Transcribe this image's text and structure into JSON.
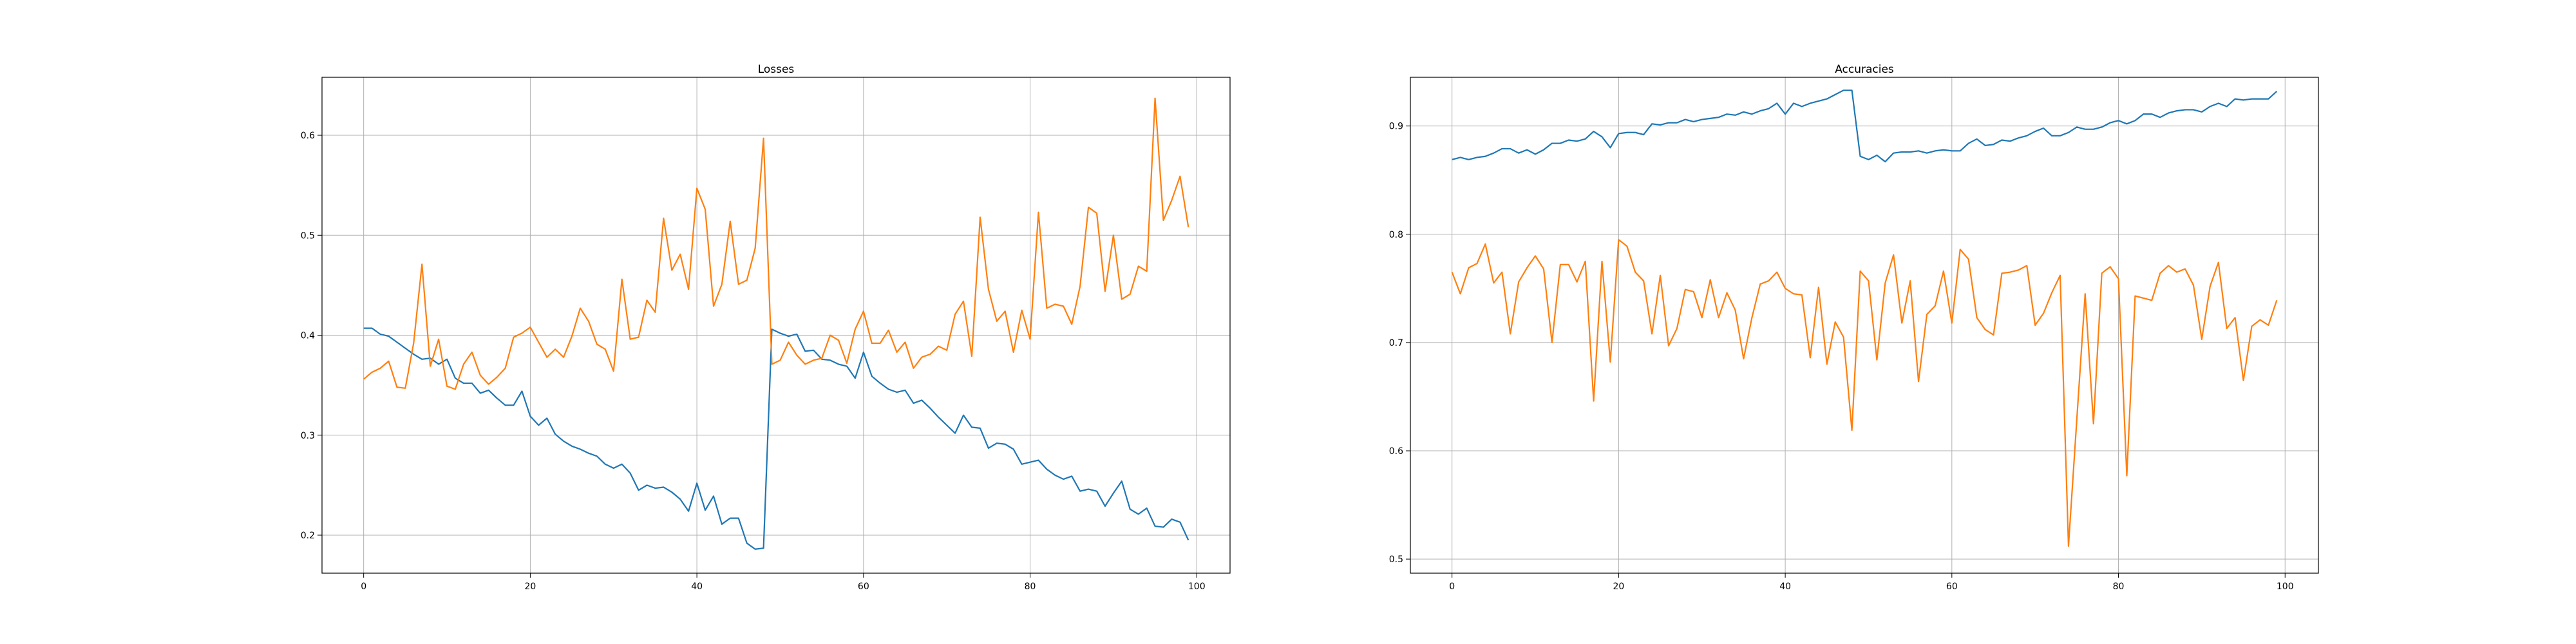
{
  "chart_data": [
    {
      "type": "line",
      "title": "Losses",
      "xlim": [
        -5,
        104
      ],
      "ylim": [
        0.162,
        0.658
      ],
      "xticks": [
        0,
        20,
        40,
        60,
        80,
        100
      ],
      "yticks": [
        0.2,
        0.3,
        0.4,
        0.5,
        0.6
      ],
      "xtick_labels": [
        "0",
        "20",
        "40",
        "60",
        "80",
        "100"
      ],
      "ytick_labels": [
        "0.2",
        "0.3",
        "0.4",
        "0.5",
        "0.6"
      ],
      "grid": true,
      "legend": "none",
      "series": [
        {
          "color": "#1f77b4",
          "x": [
            0,
            1,
            2,
            3,
            4,
            5,
            6,
            7,
            8,
            9,
            10,
            11,
            12,
            13,
            14,
            15,
            16,
            17,
            18,
            19,
            20,
            21,
            22,
            23,
            24,
            25,
            26,
            27,
            28,
            29,
            30,
            31,
            32,
            33,
            34,
            35,
            36,
            37,
            38,
            39,
            40,
            41,
            42,
            43,
            44,
            45,
            46,
            47,
            48,
            49,
            50,
            51,
            52,
            53,
            54,
            55,
            56,
            57,
            58,
            59,
            60,
            61,
            62,
            63,
            64,
            65,
            66,
            67,
            68,
            69,
            70,
            71,
            72,
            73,
            74,
            75,
            76,
            77,
            78,
            79,
            80,
            81,
            82,
            83,
            84,
            85,
            86,
            87,
            88,
            89,
            90,
            91,
            92,
            93,
            94,
            95,
            96,
            97,
            98,
            99
          ],
          "values": [
            0.407,
            0.407,
            0.401,
            0.399,
            0.393,
            0.387,
            0.381,
            0.376,
            0.377,
            0.371,
            0.376,
            0.357,
            0.352,
            0.352,
            0.342,
            0.345,
            0.337,
            0.33,
            0.33,
            0.344,
            0.319,
            0.31,
            0.317,
            0.301,
            0.294,
            0.289,
            0.286,
            0.282,
            0.279,
            0.271,
            0.267,
            0.271,
            0.262,
            0.245,
            0.25,
            0.247,
            0.248,
            0.243,
            0.236,
            0.224,
            0.252,
            0.225,
            0.239,
            0.211,
            0.217,
            0.217,
            0.192,
            0.186,
            0.187,
            0.406,
            0.402,
            0.399,
            0.401,
            0.384,
            0.385,
            0.376,
            0.375,
            0.371,
            0.369,
            0.357,
            0.383,
            0.359,
            0.352,
            0.346,
            0.343,
            0.345,
            0.332,
            0.335,
            0.327,
            0.318,
            0.31,
            0.302,
            0.32,
            0.308,
            0.307,
            0.287,
            0.292,
            0.291,
            0.286,
            0.271,
            0.273,
            0.275,
            0.266,
            0.26,
            0.256,
            0.259,
            0.244,
            0.246,
            0.244,
            0.229,
            0.242,
            0.254,
            0.226,
            0.221,
            0.227,
            0.209,
            0.208,
            0.216,
            0.213,
            0.195
          ]
        },
        {
          "color": "#ff7f0e",
          "x": [
            0,
            1,
            2,
            3,
            4,
            5,
            6,
            7,
            8,
            9,
            10,
            11,
            12,
            13,
            14,
            15,
            16,
            17,
            18,
            19,
            20,
            21,
            22,
            23,
            24,
            25,
            26,
            27,
            28,
            29,
            30,
            31,
            32,
            33,
            34,
            35,
            36,
            37,
            38,
            39,
            40,
            41,
            42,
            43,
            44,
            45,
            46,
            47,
            48,
            49,
            50,
            51,
            52,
            53,
            54,
            55,
            56,
            57,
            58,
            59,
            60,
            61,
            62,
            63,
            64,
            65,
            66,
            67,
            68,
            69,
            70,
            71,
            72,
            73,
            74,
            75,
            76,
            77,
            78,
            79,
            80,
            81,
            82,
            83,
            84,
            85,
            86,
            87,
            88,
            89,
            90,
            91,
            92,
            93,
            94,
            95,
            96,
            97,
            98,
            99
          ],
          "values": [
            0.356,
            0.363,
            0.367,
            0.374,
            0.348,
            0.347,
            0.392,
            0.471,
            0.369,
            0.396,
            0.349,
            0.346,
            0.371,
            0.383,
            0.36,
            0.351,
            0.358,
            0.367,
            0.398,
            0.402,
            0.408,
            0.393,
            0.378,
            0.386,
            0.378,
            0.399,
            0.427,
            0.414,
            0.391,
            0.386,
            0.364,
            0.456,
            0.396,
            0.398,
            0.435,
            0.423,
            0.517,
            0.465,
            0.481,
            0.446,
            0.547,
            0.526,
            0.429,
            0.451,
            0.514,
            0.451,
            0.455,
            0.487,
            0.597,
            0.371,
            0.375,
            0.393,
            0.38,
            0.371,
            0.375,
            0.377,
            0.4,
            0.395,
            0.372,
            0.406,
            0.424,
            0.392,
            0.392,
            0.405,
            0.383,
            0.393,
            0.367,
            0.378,
            0.381,
            0.389,
            0.385,
            0.421,
            0.434,
            0.379,
            0.518,
            0.446,
            0.414,
            0.424,
            0.383,
            0.425,
            0.396,
            0.523,
            0.427,
            0.431,
            0.429,
            0.411,
            0.449,
            0.528,
            0.522,
            0.444,
            0.5,
            0.436,
            0.441,
            0.469,
            0.464,
            0.637,
            0.515,
            0.535,
            0.559,
            0.508
          ]
        }
      ]
    },
    {
      "type": "line",
      "title": "Accuracies",
      "xlim": [
        -5,
        104
      ],
      "ylim": [
        0.487,
        0.945
      ],
      "xticks": [
        0,
        20,
        40,
        60,
        80,
        100
      ],
      "yticks": [
        0.5,
        0.6,
        0.7,
        0.8,
        0.9
      ],
      "xtick_labels": [
        "0",
        "20",
        "40",
        "60",
        "80",
        "100"
      ],
      "ytick_labels": [
        "0.5",
        "0.6",
        "0.7",
        "0.8",
        "0.9"
      ],
      "grid": true,
      "legend": "none",
      "series": [
        {
          "color": "#1f77b4",
          "x": [
            0,
            1,
            2,
            3,
            4,
            5,
            6,
            7,
            8,
            9,
            10,
            11,
            12,
            13,
            14,
            15,
            16,
            17,
            18,
            19,
            20,
            21,
            22,
            23,
            24,
            25,
            26,
            27,
            28,
            29,
            30,
            31,
            32,
            33,
            34,
            35,
            36,
            37,
            38,
            39,
            40,
            41,
            42,
            43,
            44,
            45,
            46,
            47,
            48,
            49,
            50,
            51,
            52,
            53,
            54,
            55,
            56,
            57,
            58,
            59,
            60,
            61,
            62,
            63,
            64,
            65,
            66,
            67,
            68,
            69,
            70,
            71,
            72,
            73,
            74,
            75,
            76,
            77,
            78,
            79,
            80,
            81,
            82,
            83,
            84,
            85,
            86,
            87,
            88,
            89,
            90,
            91,
            92,
            93,
            94,
            95,
            96,
            97,
            98,
            99
          ],
          "values": [
            0.869,
            0.871,
            0.869,
            0.871,
            0.872,
            0.875,
            0.879,
            0.879,
            0.875,
            0.878,
            0.874,
            0.878,
            0.884,
            0.884,
            0.887,
            0.886,
            0.888,
            0.895,
            0.89,
            0.88,
            0.893,
            0.894,
            0.894,
            0.892,
            0.902,
            0.901,
            0.903,
            0.903,
            0.906,
            0.904,
            0.906,
            0.907,
            0.908,
            0.911,
            0.91,
            0.913,
            0.911,
            0.914,
            0.916,
            0.921,
            0.911,
            0.921,
            0.918,
            0.921,
            0.923,
            0.925,
            0.929,
            0.933,
            0.933,
            0.872,
            0.869,
            0.873,
            0.867,
            0.875,
            0.876,
            0.876,
            0.877,
            0.875,
            0.877,
            0.878,
            0.877,
            0.877,
            0.884,
            0.888,
            0.882,
            0.883,
            0.887,
            0.886,
            0.889,
            0.891,
            0.895,
            0.898,
            0.891,
            0.891,
            0.894,
            0.899,
            0.897,
            0.897,
            0.899,
            0.903,
            0.905,
            0.902,
            0.905,
            0.911,
            0.911,
            0.908,
            0.912,
            0.914,
            0.915,
            0.915,
            0.913,
            0.918,
            0.921,
            0.918,
            0.925,
            0.924,
            0.925,
            0.925,
            0.925,
            0.932
          ]
        },
        {
          "color": "#ff7f0e",
          "x": [
            0,
            1,
            2,
            3,
            4,
            5,
            6,
            7,
            8,
            9,
            10,
            11,
            12,
            13,
            14,
            15,
            16,
            17,
            18,
            19,
            20,
            21,
            22,
            23,
            24,
            25,
            26,
            27,
            28,
            29,
            30,
            31,
            32,
            33,
            34,
            35,
            36,
            37,
            38,
            39,
            40,
            41,
            42,
            43,
            44,
            45,
            46,
            47,
            48,
            49,
            50,
            51,
            52,
            53,
            54,
            55,
            56,
            57,
            58,
            59,
            60,
            61,
            62,
            63,
            64,
            65,
            66,
            67,
            68,
            69,
            70,
            71,
            72,
            73,
            74,
            75,
            76,
            77,
            78,
            79,
            80,
            81,
            82,
            83,
            84,
            85,
            86,
            87,
            88,
            89,
            90,
            91,
            92,
            93,
            94,
            95,
            96,
            97,
            98,
            99
          ],
          "values": [
            0.765,
            0.745,
            0.769,
            0.773,
            0.791,
            0.755,
            0.765,
            0.708,
            0.756,
            0.769,
            0.78,
            0.768,
            0.7,
            0.772,
            0.772,
            0.756,
            0.775,
            0.646,
            0.775,
            0.682,
            0.795,
            0.789,
            0.765,
            0.757,
            0.708,
            0.762,
            0.697,
            0.713,
            0.749,
            0.747,
            0.723,
            0.758,
            0.723,
            0.746,
            0.73,
            0.685,
            0.723,
            0.754,
            0.757,
            0.765,
            0.75,
            0.745,
            0.744,
            0.686,
            0.751,
            0.68,
            0.719,
            0.705,
            0.619,
            0.766,
            0.757,
            0.684,
            0.755,
            0.781,
            0.718,
            0.757,
            0.664,
            0.726,
            0.734,
            0.766,
            0.718,
            0.786,
            0.777,
            0.723,
            0.712,
            0.707,
            0.764,
            0.765,
            0.767,
            0.771,
            0.716,
            0.727,
            0.746,
            0.762,
            0.512,
            0.629,
            0.745,
            0.625,
            0.764,
            0.77,
            0.759,
            0.577,
            0.743,
            0.741,
            0.739,
            0.764,
            0.771,
            0.765,
            0.768,
            0.753,
            0.703,
            0.752,
            0.774,
            0.713,
            0.723,
            0.665,
            0.715,
            0.721,
            0.716,
            0.739
          ]
        }
      ]
    }
  ]
}
